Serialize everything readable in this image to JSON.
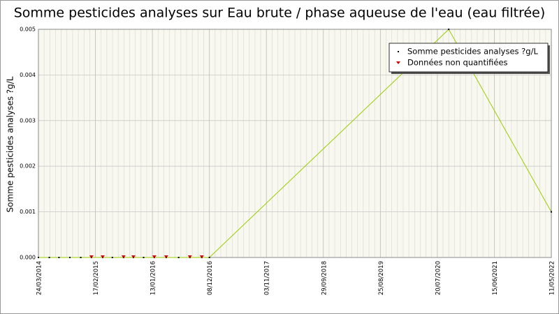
{
  "chart_data": {
    "type": "line",
    "title": "Somme pesticides analyses sur Eau brute / phase aqueuse de l'eau (eau filtrée)",
    "y_label": "Somme pesticides analyses ?g/L",
    "x": [
      "2014-03-24",
      "2014-05-26",
      "2014-07-21",
      "2014-09-22",
      "2014-11-24",
      "2015-01-25",
      "2015-03-31",
      "2015-05-26",
      "2015-07-30",
      "2015-09-25",
      "2015-11-23",
      "2016-01-24",
      "2016-04-02",
      "2016-06-13",
      "2016-08-17",
      "2016-10-25",
      "2016-12-08",
      "2020-09-24",
      "2022-05-11"
    ],
    "series": [
      {
        "name": "Somme pesticides analyses ?g/L",
        "color": "#99cc00",
        "marker_color": "#000000",
        "values": [
          0,
          0,
          0,
          0,
          0,
          0,
          0,
          0,
          0,
          0,
          0,
          0,
          0,
          0,
          0,
          0,
          0,
          0.005,
          0.001
        ]
      },
      {
        "name": "Données non quantifiées",
        "color": "#cc0000",
        "marker": "triangle-down",
        "x": [
          "2015-01-25",
          "2015-03-31",
          "2015-07-30",
          "2015-09-25",
          "2016-01-24",
          "2016-04-02",
          "2016-08-17",
          "2016-10-25"
        ],
        "values": [
          0,
          0,
          0,
          0,
          0,
          0,
          0,
          0
        ]
      }
    ],
    "xlim": [
      "2014-03-24",
      "2022-05-11"
    ],
    "xticks": [
      "24/03/2014",
      "17/02/2015",
      "13/01/2016",
      "08/12/2016",
      "03/11/2017",
      "29/09/2018",
      "25/08/2019",
      "20/07/2020",
      "15/06/2021",
      "11/05/2022"
    ],
    "ylim": [
      0,
      0.005
    ],
    "yticks": [
      {
        "value": 0,
        "label": "0.000"
      },
      0.001,
      0.002,
      0.003,
      0.004,
      0.005
    ],
    "grid": true,
    "legend_position": "upper-right"
  }
}
